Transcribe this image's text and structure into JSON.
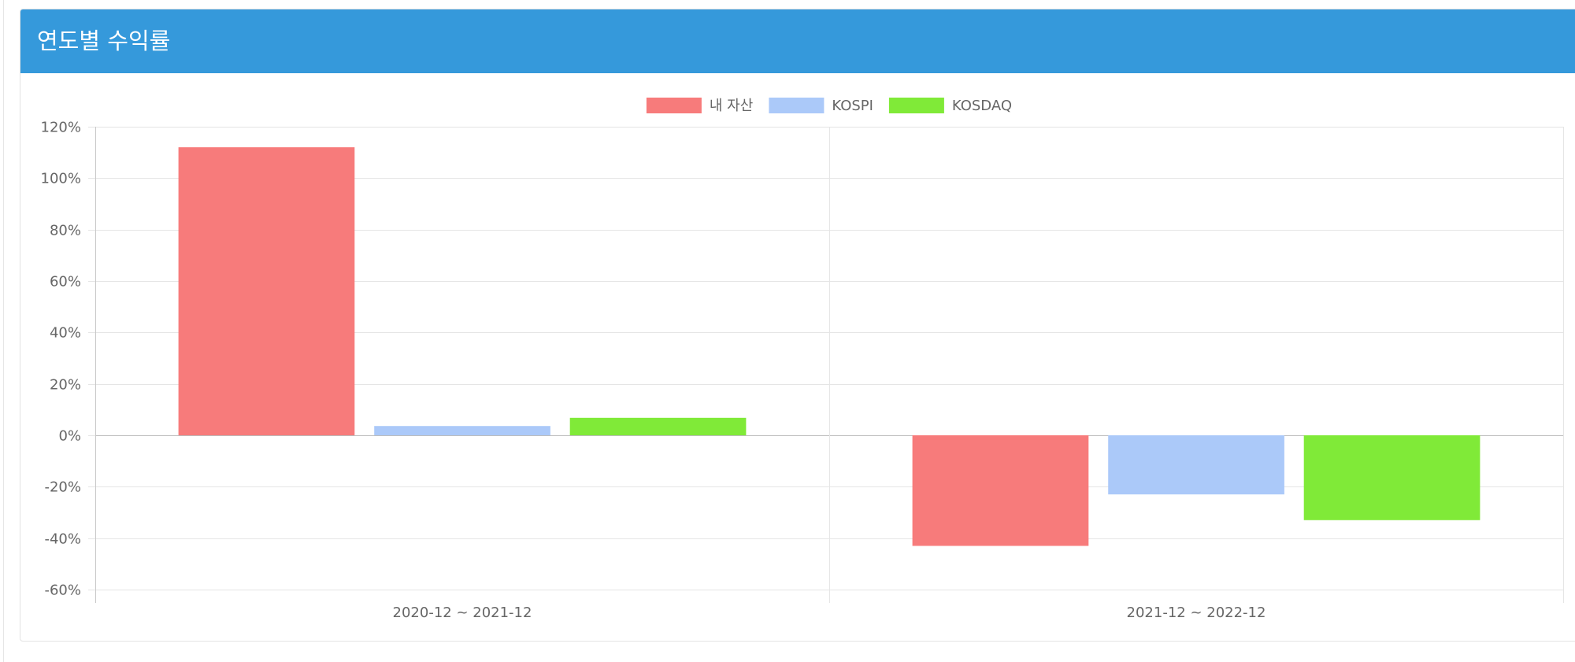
{
  "panel": {
    "title": "연도별 수익률"
  },
  "colors": {
    "header_bg": "#3599db",
    "grid": "#e5e5e5",
    "tick_text": "#666666"
  },
  "chart_data": {
    "type": "bar",
    "categories": [
      "2020-12 ~ 2021-12",
      "2021-12 ~ 2022-12"
    ],
    "series": [
      {
        "name": "내 자산",
        "color": "#f77b7b",
        "values": [
          112,
          -43
        ]
      },
      {
        "name": "KOSPI",
        "color": "#abc9f9",
        "values": [
          3.6,
          -23
        ]
      },
      {
        "name": "KOSDAQ",
        "color": "#80ea38",
        "values": [
          6.8,
          -33
        ]
      }
    ],
    "ylim": [
      -60,
      120
    ],
    "yticks": [
      120,
      100,
      80,
      60,
      40,
      20,
      0,
      -20,
      -40,
      -60
    ],
    "ytick_labels": [
      "120%",
      "100%",
      "80%",
      "60%",
      "40%",
      "20%",
      "0%",
      "-20%",
      "-40%",
      "-60%"
    ],
    "legend_position": "top-center",
    "grid": true
  }
}
